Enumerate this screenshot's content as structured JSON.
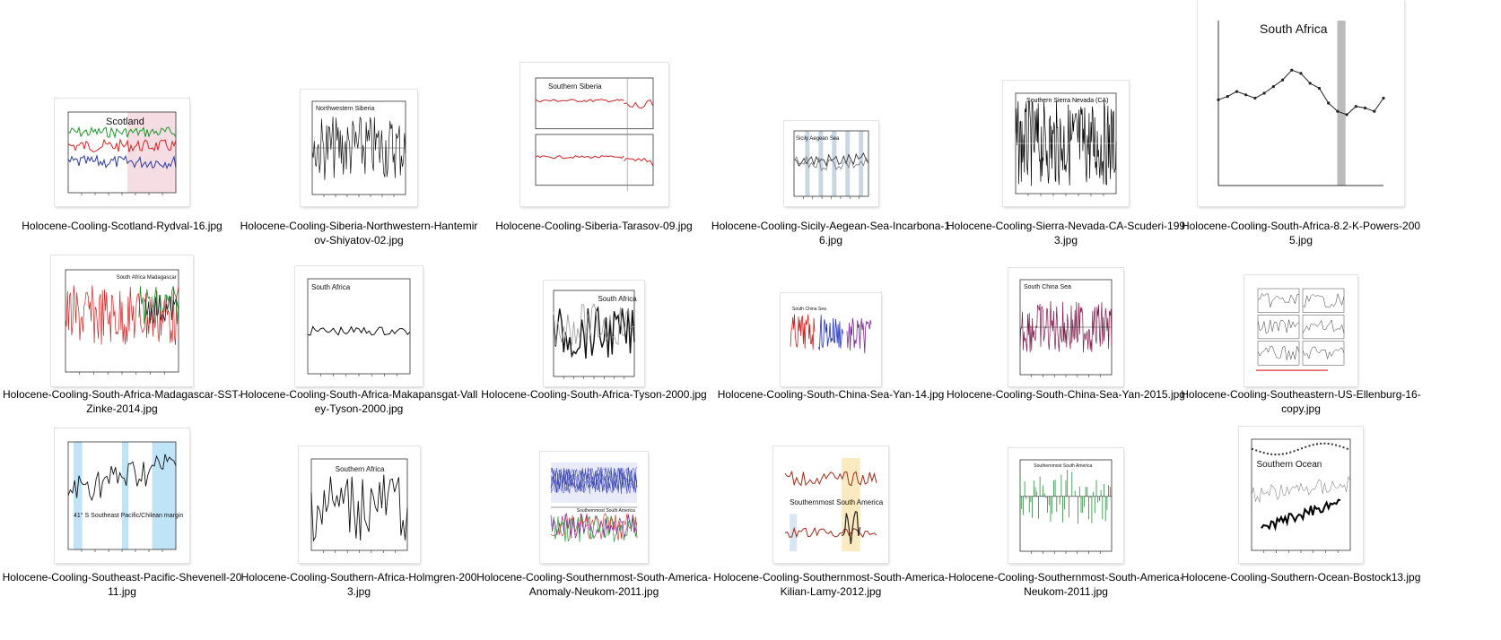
{
  "files": [
    {
      "name": "Holocene-Cooling-Scotland-Rydval-16.jpg",
      "title": "Scotland",
      "kind": "multi"
    },
    {
      "name": "Holocene-Cooling-Siberia-Northwestern-Hantemirov-Shiyatov-02.jpg",
      "title": "Northwestern Siberia",
      "kind": "noise"
    },
    {
      "name": "Holocene-Cooling-Siberia-Tarasov-09.jpg",
      "title": "Southern Siberia",
      "kind": "twin"
    },
    {
      "name": "Holocene-Cooling-Sicily-Aegean-Sea-Incarbona-16.jpg",
      "title": "Sicily Aegean Sea",
      "kind": "bands"
    },
    {
      "name": "Holocene-Cooling-Sierra-Nevada-CA-Scuderi-1993.jpg",
      "title": "Southern Sierra Nevada (CA)",
      "kind": "dense"
    },
    {
      "name": "Holocene-Cooling-South-Africa-8.2-K-Powers-2005.jpg",
      "title": "South Africa",
      "kind": "points"
    },
    {
      "name": "Holocene-Cooling-South-Africa-Madagascar-SST-Zinke-2014.jpg",
      "title": "South Africa Madagascar",
      "kind": "redgreen"
    },
    {
      "name": "Holocene-Cooling-South-Africa-Makapansgat-Valley-Tyson-2000.jpg",
      "title": "South Africa",
      "kind": "smooth"
    },
    {
      "name": "Holocene-Cooling-South-Africa-Tyson-2000.jpg",
      "title": "South Africa",
      "kind": "blackline"
    },
    {
      "name": "Holocene-Cooling-South-China-Sea-Yan-14.jpg",
      "title": "South China Sea",
      "kind": "triple"
    },
    {
      "name": "Holocene-Cooling-South-China-Sea-Yan-2015.jpg",
      "title": "South China Sea",
      "kind": "purple"
    },
    {
      "name": "Holocene-Cooling-Southeastern-US-Ellenburg-16-copy.jpg",
      "title": "",
      "kind": "grid"
    },
    {
      "name": "Holocene-Cooling-Southeast-Pacific-Shevenell-2011.jpg",
      "title": "41° S Southeast Pacific/Chilean margin",
      "kind": "bluebands"
    },
    {
      "name": "Holocene-Cooling-Southern-Africa-Holmgren-2003.jpg",
      "title": "Southern Africa",
      "kind": "zigzag"
    },
    {
      "name": "Holocene-Cooling-Southernmost-South-America-Anomaly-Neukom-2011.jpg",
      "title": "Southernmost South America",
      "kind": "colorful"
    },
    {
      "name": "Holocene-Cooling-Southernmost-South-America-Kilian-Lamy-2012.jpg",
      "title": "Southernmost South America",
      "kind": "orange"
    },
    {
      "name": "Holocene-Cooling-Southernmost-South-America-Neukom-2011.jpg",
      "title": "Southernmost South America",
      "kind": "greenbars"
    },
    {
      "name": "Holocene-Cooling-Southern-Ocean-Bostock13.jpg",
      "title": "Southern Ocean",
      "kind": "ocean"
    }
  ]
}
